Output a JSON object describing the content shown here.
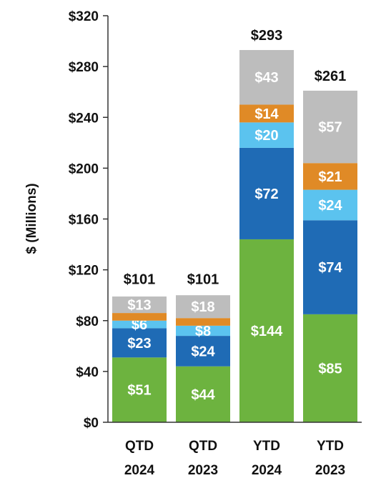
{
  "chart_data": {
    "type": "bar",
    "stacked": true,
    "ylabel": "$ (Millions)",
    "ylim": [
      0,
      320
    ],
    "yticks": [
      0,
      40,
      80,
      120,
      160,
      200,
      240,
      280,
      320
    ],
    "ytick_labels": [
      "$0",
      "$40",
      "$80",
      "$120",
      "$160",
      "$200",
      "$240",
      "$280",
      "$320"
    ],
    "categories": [
      {
        "line1": "QTD",
        "line2": "2024"
      },
      {
        "line1": "QTD",
        "line2": "2023"
      },
      {
        "line1": "YTD",
        "line2": "2024"
      },
      {
        "line1": "YTD",
        "line2": "2023"
      }
    ],
    "series": [
      {
        "color": "#6db33f",
        "values": [
          51,
          44,
          144,
          85
        ],
        "labels": [
          "$51",
          "$44",
          "$144",
          "$85"
        ]
      },
      {
        "color": "#1f6bb5",
        "values": [
          23,
          24,
          72,
          74
        ],
        "labels": [
          "$23",
          "$24",
          "$72",
          "$74"
        ]
      },
      {
        "color": "#5bc3ef",
        "values": [
          6,
          8,
          20,
          24
        ],
        "labels": [
          "$6",
          "$8",
          "$20",
          "$24"
        ]
      },
      {
        "color": "#e08a26",
        "values": [
          6,
          6,
          14,
          21
        ],
        "labels": [
          "",
          "",
          "$14",
          "$21"
        ]
      },
      {
        "color": "#bdbdbd",
        "values": [
          13,
          18,
          43,
          57
        ],
        "labels": [
          "$13",
          "$18",
          "$43",
          "$57"
        ]
      }
    ],
    "totals": [
      101,
      101,
      293,
      261
    ],
    "total_labels": [
      "$101",
      "$101",
      "$293",
      "$261"
    ],
    "grid": false,
    "legend": "none"
  }
}
